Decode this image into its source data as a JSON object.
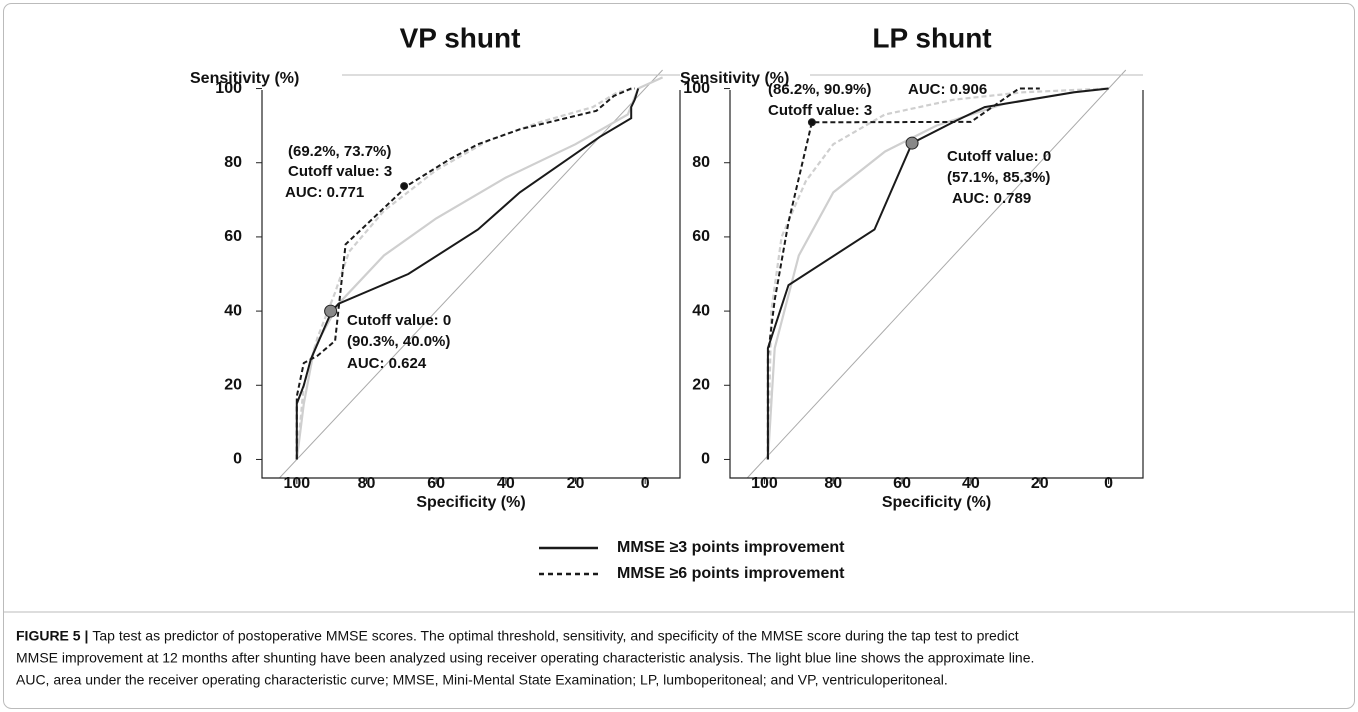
{
  "chart_data": [
    {
      "type": "line",
      "title": "VP shunt",
      "ylabel": "Sensitivity (%)",
      "xlabel": "Specificity (%)",
      "xlim": [
        110,
        -10
      ],
      "ylim": [
        -5,
        105
      ],
      "xticks": [
        100,
        80,
        60,
        40,
        20,
        0
      ],
      "yticks": [
        0,
        20,
        40,
        60,
        80,
        100
      ],
      "series": [
        {
          "name": "MMSE ≥3 points improvement",
          "color": "#1a1a1a",
          "dash": false,
          "x": [
            100,
            100,
            98,
            96,
            90,
            88,
            68,
            48,
            36,
            13,
            4,
            4,
            3,
            2
          ],
          "values": [
            0,
            15,
            20,
            27,
            40,
            42,
            50,
            62,
            72,
            87,
            92,
            95,
            97,
            100
          ]
        },
        {
          "name": "MMSE ≥6 points improvement",
          "color": "#1a1a1a",
          "dash": true,
          "x": [
            100,
            100,
            98,
            94,
            89,
            86,
            68,
            56,
            48,
            36,
            14,
            9,
            4,
            3
          ],
          "values": [
            0,
            17,
            26,
            28,
            32,
            58,
            74,
            81,
            85,
            89,
            94,
            98,
            100,
            100
          ]
        },
        {
          "color": "#cfcfcf",
          "dash": false,
          "x": [
            100,
            98,
            95,
            88,
            75,
            60,
            40,
            20,
            5,
            2,
            -5
          ],
          "values": [
            0,
            15,
            30,
            42,
            55,
            65,
            76,
            85,
            93,
            100,
            103
          ]
        },
        {
          "color": "#cfcfcf",
          "dash": true,
          "x": [
            100,
            98,
            94,
            89,
            85,
            75,
            60,
            45,
            30,
            15,
            8,
            3
          ],
          "values": [
            0,
            20,
            33,
            45,
            56,
            67,
            78,
            86,
            91,
            95,
            99,
            100
          ]
        }
      ],
      "markers": [
        {
          "x": 69.2,
          "y": 73.7,
          "color": "#111111"
        },
        {
          "x": 90.3,
          "y": 40.0,
          "color": "#888888"
        }
      ],
      "annotations": [
        "(69.2%, 73.7%)",
        "Cutoff value: 3",
        "AUC: 0.771",
        "Cutoff value: 0",
        "(90.3%, 40.0%)",
        "AUC: 0.624"
      ]
    },
    {
      "type": "line",
      "title": "LP shunt",
      "ylabel": "Sensitivity (%)",
      "xlabel": "Specificity (%)",
      "xlim": [
        110,
        -10
      ],
      "ylim": [
        -5,
        105
      ],
      "xticks": [
        100,
        80,
        60,
        40,
        20,
        0
      ],
      "yticks": [
        0,
        20,
        40,
        60,
        80,
        100
      ],
      "series": [
        {
          "name": "MMSE ≥3 points improvement",
          "color": "#1a1a1a",
          "dash": false,
          "x": [
            99,
            99,
            93,
            68,
            57.1,
            45,
            36,
            10,
            0
          ],
          "values": [
            0,
            30,
            47,
            62,
            85.3,
            91,
            95,
            99,
            100
          ]
        },
        {
          "name": "MMSE ≥6 points improvement",
          "color": "#1a1a1a",
          "dash": true,
          "x": [
            99,
            99,
            97,
            93,
            86.2,
            40,
            26,
            20
          ],
          "values": [
            0,
            28,
            43,
            64,
            90.9,
            91,
            100,
            100
          ]
        },
        {
          "color": "#cfcfcf",
          "dash": false,
          "x": [
            99,
            97,
            90,
            80,
            65,
            50,
            30,
            10,
            0
          ],
          "values": [
            0,
            30,
            55,
            72,
            83,
            90,
            96,
            99,
            100
          ]
        },
        {
          "color": "#cfcfcf",
          "dash": true,
          "x": [
            99,
            98,
            95,
            88,
            80,
            65,
            45,
            25,
            0
          ],
          "values": [
            0,
            40,
            60,
            75,
            85,
            93,
            97,
            99,
            100
          ]
        }
      ],
      "markers": [
        {
          "x": 86.2,
          "y": 90.9,
          "color": "#111111"
        },
        {
          "x": 57.1,
          "y": 85.3,
          "color": "#888888"
        }
      ],
      "annotations": [
        "(86.2%, 90.9%)",
        "AUC: 0.906",
        "Cutoff value: 3",
        "Cutoff value: 0",
        "(57.1%, 85.3%)",
        "AUC: 0.789"
      ]
    }
  ],
  "caption": {
    "label": "FIGURE 5 |",
    "lines": [
      "Tap test as predictor of postoperative MMSE scores. The optimal threshold, sensitivity, and specificity of the MMSE score during the tap test to predict",
      "MMSE improvement at 12 months after shunting have been analyzed using receiver operating characteristic analysis. The light blue line shows the approximate line.",
      "AUC, area under the receiver operating characteristic curve; MMSE, Mini-Mental State Examination; LP, lumboperitoneal; and VP, ventriculoperitoneal."
    ]
  }
}
